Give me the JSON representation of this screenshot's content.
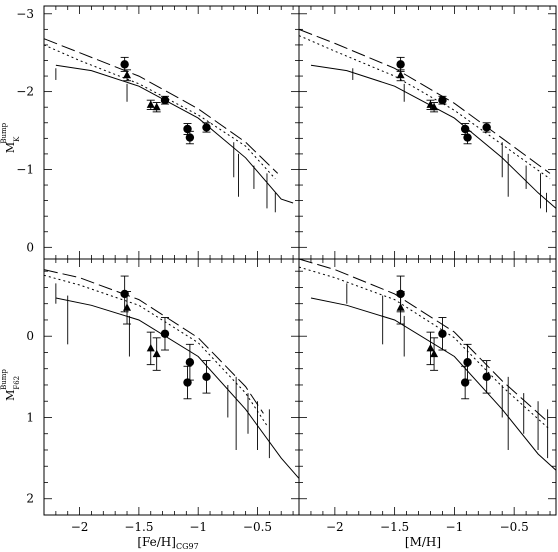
{
  "chart_data": [
    {
      "id": "top-left",
      "type": "scatter",
      "ylabel_main": "M",
      "ylabel_sup": "Bump",
      "ylabel_sub": "K",
      "xlim": [
        -2.3,
        -0.15
      ],
      "ylim": [
        -3.1,
        0.15
      ],
      "y_inverted": true,
      "x_ticks": [
        -2,
        -1.5,
        -1,
        -0.5
      ],
      "y_ticks": [
        -3,
        -2,
        -1,
        0
      ],
      "y_tick_labels": [
        "−3",
        "−2",
        "−1",
        "0"
      ],
      "circles": [
        {
          "x": -1.62,
          "y": -2.35,
          "err": 0.09
        },
        {
          "x": -1.28,
          "y": -1.89,
          "err": 0.05
        },
        {
          "x": -1.09,
          "y": -1.52,
          "err": 0.07
        },
        {
          "x": -1.07,
          "y": -1.41,
          "err": 0.08
        },
        {
          "x": -0.93,
          "y": -1.54,
          "err": 0.06
        }
      ],
      "triangles": [
        {
          "x": -1.6,
          "y": -2.21,
          "err": 0.07
        },
        {
          "x": -1.4,
          "y": -1.83,
          "err": 0.06
        },
        {
          "x": -1.35,
          "y": -1.8,
          "err": 0.06
        }
      ],
      "bars": [
        {
          "x": -2.2,
          "lo": -2.3,
          "hi": -2.15
        },
        {
          "x": -1.6,
          "lo": -2.1,
          "hi": -1.87
        },
        {
          "x": -0.7,
          "lo": -1.35,
          "hi": -0.9
        },
        {
          "x": -0.66,
          "lo": -1.2,
          "hi": -0.65
        },
        {
          "x": -0.53,
          "lo": -1.05,
          "hi": -0.75
        },
        {
          "x": -0.42,
          "lo": -0.95,
          "hi": -0.5
        },
        {
          "x": -0.35,
          "lo": -0.7,
          "hi": -0.45
        }
      ],
      "models": [
        {
          "style": "long-dash",
          "points": [
            [
              -2.3,
              -2.68
            ],
            [
              -2.0,
              -2.5
            ],
            [
              -1.5,
              -2.2
            ],
            [
              -1.0,
              -1.78
            ],
            [
              -0.6,
              -1.35
            ],
            [
              -0.33,
              -0.95
            ]
          ]
        },
        {
          "style": "dotted",
          "points": [
            [
              -2.3,
              -2.6
            ],
            [
              -2.0,
              -2.4
            ],
            [
              -1.5,
              -2.1
            ],
            [
              -1.0,
              -1.7
            ],
            [
              -0.6,
              -1.3
            ],
            [
              -0.35,
              -0.88
            ]
          ]
        },
        {
          "style": "solid",
          "points": [
            [
              -2.2,
              -2.34
            ],
            [
              -1.9,
              -2.27
            ],
            [
              -1.5,
              -2.07
            ],
            [
              -1.0,
              -1.66
            ],
            [
              -0.6,
              -1.15
            ],
            [
              -0.3,
              -0.62
            ],
            [
              -0.2,
              -0.57
            ]
          ]
        }
      ]
    },
    {
      "id": "top-right",
      "type": "scatter",
      "xlim": [
        -2.3,
        -0.15
      ],
      "ylim": [
        -3.1,
        0.15
      ],
      "y_inverted": true,
      "x_ticks": [
        -2,
        -1.5,
        -1,
        -0.5
      ],
      "y_ticks": [
        -3,
        -2,
        -1,
        0
      ],
      "circles": [
        {
          "x": -1.45,
          "y": -2.35,
          "err": 0.09
        },
        {
          "x": -1.1,
          "y": -1.89,
          "err": 0.05
        },
        {
          "x": -0.91,
          "y": -1.52,
          "err": 0.07
        },
        {
          "x": -0.89,
          "y": -1.41,
          "err": 0.08
        },
        {
          "x": -0.73,
          "y": -1.54,
          "err": 0.06
        }
      ],
      "triangles": [
        {
          "x": -1.45,
          "y": -2.21,
          "err": 0.07
        },
        {
          "x": -1.2,
          "y": -1.83,
          "err": 0.06
        },
        {
          "x": -1.17,
          "y": -1.8,
          "err": 0.06
        }
      ],
      "bars": [
        {
          "x": -1.85,
          "lo": -2.3,
          "hi": -2.15
        },
        {
          "x": -1.42,
          "lo": -2.1,
          "hi": -1.87
        },
        {
          "x": -0.6,
          "lo": -1.35,
          "hi": -0.9
        },
        {
          "x": -0.55,
          "lo": -1.2,
          "hi": -0.65
        },
        {
          "x": -0.4,
          "lo": -1.05,
          "hi": -0.75
        },
        {
          "x": -0.28,
          "lo": -0.95,
          "hi": -0.5
        },
        {
          "x": -0.23,
          "lo": -0.7,
          "hi": -0.45
        }
      ],
      "models": [
        {
          "style": "long-dash",
          "points": [
            [
              -2.3,
              -2.8
            ],
            [
              -2.0,
              -2.62
            ],
            [
              -1.5,
              -2.3
            ],
            [
              -1.0,
              -1.85
            ],
            [
              -0.6,
              -1.4
            ],
            [
              -0.2,
              -0.95
            ]
          ]
        },
        {
          "style": "dotted",
          "points": [
            [
              -2.3,
              -2.72
            ],
            [
              -2.0,
              -2.52
            ],
            [
              -1.5,
              -2.2
            ],
            [
              -1.0,
              -1.76
            ],
            [
              -0.6,
              -1.32
            ],
            [
              -0.2,
              -0.88
            ]
          ]
        },
        {
          "style": "solid",
          "points": [
            [
              -2.2,
              -2.34
            ],
            [
              -1.9,
              -2.27
            ],
            [
              -1.5,
              -2.07
            ],
            [
              -1.0,
              -1.66
            ],
            [
              -0.6,
              -1.15
            ],
            [
              -0.3,
              -0.7
            ],
            [
              -0.15,
              -0.5
            ]
          ]
        }
      ]
    },
    {
      "id": "bottom-left",
      "type": "scatter",
      "xlabel": "[Fe/H]",
      "xlabel_sub": "CG97",
      "ylabel_main": "M",
      "ylabel_sup": "Bump",
      "ylabel_sub": "F62",
      "xlim": [
        -2.3,
        -0.15
      ],
      "ylim": [
        -0.95,
        2.2
      ],
      "y_inverted": false,
      "x_ticks": [
        -2,
        -1.5,
        -1,
        -0.5
      ],
      "x_tick_labels": [
        "−2",
        "−1.5",
        "−1",
        "−0.5"
      ],
      "y_ticks": [
        0,
        1,
        2
      ],
      "y_tick_labels": [
        "0",
        "1",
        "2"
      ],
      "circles": [
        {
          "x": -1.62,
          "y": -0.52,
          "err": 0.22
        },
        {
          "x": -1.28,
          "y": -0.03,
          "err": 0.2
        },
        {
          "x": -1.09,
          "y": 0.57,
          "err": 0.2
        },
        {
          "x": -1.07,
          "y": 0.32,
          "err": 0.22
        },
        {
          "x": -0.93,
          "y": 0.5,
          "err": 0.2
        }
      ],
      "triangles": [
        {
          "x": -1.6,
          "y": -0.35,
          "err": 0.2
        },
        {
          "x": -1.4,
          "y": 0.15,
          "err": 0.2
        },
        {
          "x": -1.35,
          "y": 0.22,
          "err": 0.2
        }
      ],
      "bars": [
        {
          "x": -2.2,
          "lo": -0.65,
          "hi": -0.4
        },
        {
          "x": -2.1,
          "lo": -0.5,
          "hi": 0.1
        },
        {
          "x": -1.58,
          "lo": -0.25,
          "hi": 0.25
        },
        {
          "x": -0.75,
          "lo": 0.6,
          "hi": 1.0
        },
        {
          "x": -0.68,
          "lo": 0.5,
          "hi": 1.4
        },
        {
          "x": -0.58,
          "lo": 0.7,
          "hi": 1.2
        },
        {
          "x": -0.5,
          "lo": 0.8,
          "hi": 1.4
        },
        {
          "x": -0.4,
          "lo": 0.9,
          "hi": 1.5
        }
      ],
      "models": [
        {
          "style": "long-dash",
          "points": [
            [
              -2.3,
              -0.82
            ],
            [
              -2.0,
              -0.72
            ],
            [
              -1.5,
              -0.45
            ],
            [
              -1.0,
              0.02
            ],
            [
              -0.6,
              0.62
            ],
            [
              -0.45,
              0.95
            ]
          ]
        },
        {
          "style": "dotted",
          "points": [
            [
              -2.3,
              -0.75
            ],
            [
              -2.0,
              -0.63
            ],
            [
              -1.5,
              -0.38
            ],
            [
              -1.0,
              0.08
            ],
            [
              -0.6,
              0.7
            ],
            [
              -0.42,
              1.1
            ]
          ]
        },
        {
          "style": "solid",
          "points": [
            [
              -2.2,
              -0.47
            ],
            [
              -1.9,
              -0.38
            ],
            [
              -1.5,
              -0.2
            ],
            [
              -1.0,
              0.25
            ],
            [
              -0.6,
              0.9
            ],
            [
              -0.3,
              1.5
            ],
            [
              -0.15,
              1.75
            ]
          ]
        }
      ]
    },
    {
      "id": "bottom-right",
      "type": "scatter",
      "xlabel": "[M/H]",
      "xlim": [
        -2.3,
        -0.15
      ],
      "ylim": [
        -0.95,
        2.2
      ],
      "y_inverted": false,
      "x_ticks": [
        -2,
        -1.5,
        -1,
        -0.5
      ],
      "x_tick_labels": [
        "−2",
        "−1.5",
        "−1",
        "−0.5"
      ],
      "y_ticks": [
        0,
        1,
        2
      ],
      "circles": [
        {
          "x": -1.45,
          "y": -0.52,
          "err": 0.22
        },
        {
          "x": -1.1,
          "y": -0.03,
          "err": 0.2
        },
        {
          "x": -0.91,
          "y": 0.57,
          "err": 0.2
        },
        {
          "x": -0.89,
          "y": 0.32,
          "err": 0.22
        },
        {
          "x": -0.73,
          "y": 0.5,
          "err": 0.2
        }
      ],
      "triangles": [
        {
          "x": -1.45,
          "y": -0.35,
          "err": 0.2
        },
        {
          "x": -1.2,
          "y": 0.15,
          "err": 0.2
        },
        {
          "x": -1.17,
          "y": 0.22,
          "err": 0.2
        }
      ],
      "bars": [
        {
          "x": -1.9,
          "lo": -0.65,
          "hi": -0.4
        },
        {
          "x": -1.6,
          "lo": -0.5,
          "hi": 0.1
        },
        {
          "x": -1.42,
          "lo": -0.25,
          "hi": 0.25
        },
        {
          "x": -0.6,
          "lo": 0.6,
          "hi": 1.0
        },
        {
          "x": -0.55,
          "lo": 0.5,
          "hi": 1.4
        },
        {
          "x": -0.42,
          "lo": 0.7,
          "hi": 1.2
        },
        {
          "x": -0.3,
          "lo": 0.8,
          "hi": 1.4
        },
        {
          "x": -0.22,
          "lo": 0.9,
          "hi": 1.5
        }
      ],
      "models": [
        {
          "style": "long-dash",
          "points": [
            [
              -2.3,
              -0.95
            ],
            [
              -2.0,
              -0.82
            ],
            [
              -1.5,
              -0.52
            ],
            [
              -1.0,
              -0.05
            ],
            [
              -0.6,
              0.55
            ],
            [
              -0.22,
              1.05
            ]
          ]
        },
        {
          "style": "dotted",
          "points": [
            [
              -2.3,
              -0.85
            ],
            [
              -2.0,
              -0.72
            ],
            [
              -1.5,
              -0.45
            ],
            [
              -1.0,
              0.02
            ],
            [
              -0.6,
              0.62
            ],
            [
              -0.2,
              1.15
            ]
          ]
        },
        {
          "style": "solid",
          "points": [
            [
              -2.2,
              -0.47
            ],
            [
              -1.9,
              -0.38
            ],
            [
              -1.5,
              -0.2
            ],
            [
              -1.0,
              0.25
            ],
            [
              -0.6,
              0.9
            ],
            [
              -0.3,
              1.45
            ],
            [
              -0.15,
              1.65
            ]
          ]
        }
      ]
    }
  ]
}
